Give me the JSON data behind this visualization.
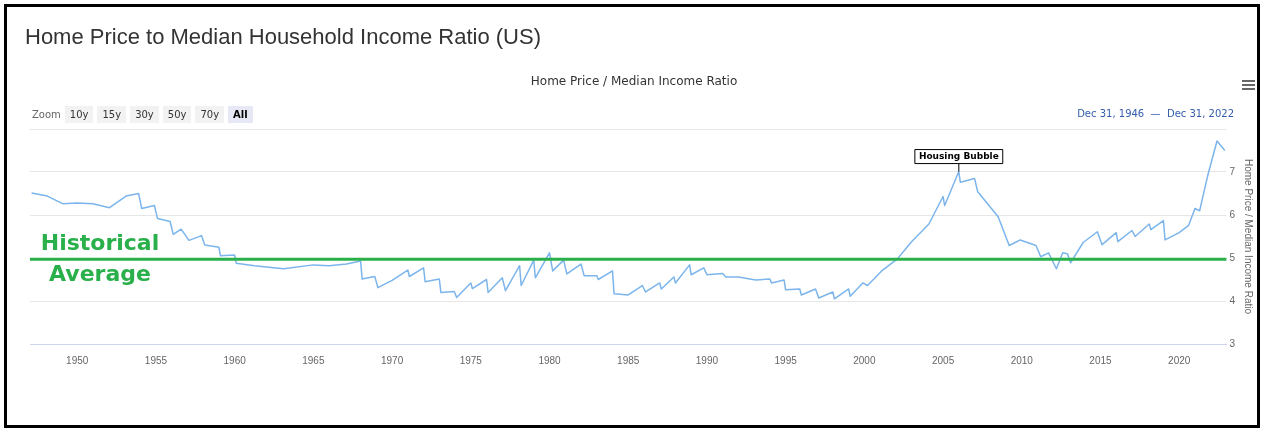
{
  "chart_data": {
    "type": "line",
    "title": "Home Price to Median Household Income Ratio (US)",
    "subtitle": "Home Price / Median Income Ratio",
    "ylabel": "Home Price / Median Income Ratio",
    "series": [
      {
        "color": "#7cb5ec",
        "x": [
          1947.1,
          1948.1,
          1949.1,
          1950,
          1951,
          1952.05,
          1953.1,
          1953.9,
          1954.1,
          1954.9,
          1955.1,
          1955.9,
          1956.1,
          1956.6,
          1957.1,
          1957.9,
          1958.1,
          1959,
          1959.1,
          1960,
          1960.1,
          1961.25,
          1963.1,
          1965,
          1966,
          1967.1,
          1968,
          1968.1,
          1968.9,
          1969.1,
          1970,
          1971,
          1971.1,
          1972,
          1972.1,
          1973,
          1973.1,
          1973.95,
          1974.1,
          1975,
          1975.1,
          1976,
          1976.1,
          1977,
          1977.2,
          1978.1,
          1978.2,
          1979,
          1979.1,
          1980,
          1980.2,
          1980.9,
          1981.1,
          1982,
          1982.2,
          1983,
          1983.1,
          1984,
          1984.1,
          1985,
          1985.9,
          1986.1,
          1987,
          1987.1,
          1987.9,
          1988,
          1988.9,
          1989,
          1989.8,
          1990,
          1991,
          1991.2,
          1992,
          1993.1,
          1994,
          1994.1,
          1994.9,
          1995,
          1995.9,
          1996,
          1996.9,
          1997.1,
          1998,
          1998.1,
          1999,
          1999.1,
          1999.9,
          2000.2,
          2001.1,
          2002.1,
          2003,
          2004.1,
          2005,
          2005.1,
          2006,
          2006.1,
          2007,
          2007.2,
          2008.5,
          2009.2,
          2009.9,
          2010.9,
          2011.2,
          2011.7,
          2012.2,
          2012.6,
          2012.9,
          2013.1,
          2013.9,
          2014.8,
          2015.1,
          2016,
          2016.1,
          2017,
          2017.2,
          2018.1,
          2018.2,
          2019,
          2019.1,
          2020,
          2020.6,
          2021,
          2021.3,
          2021.8,
          2022.4,
          2022.9
        ],
        "values": [
          6.51,
          6.44,
          6.26,
          6.28,
          6.26,
          6.17,
          6.44,
          6.5,
          6.15,
          6.22,
          5.92,
          5.85,
          5.55,
          5.67,
          5.41,
          5.52,
          5.3,
          5.25,
          5.05,
          5.07,
          4.88,
          4.82,
          4.75,
          4.84,
          4.82,
          4.86,
          4.93,
          4.51,
          4.57,
          4.31,
          4.48,
          4.72,
          4.57,
          4.77,
          4.45,
          4.51,
          4.2,
          4.22,
          4.08,
          4.42,
          4.29,
          4.5,
          4.2,
          4.54,
          4.24,
          4.82,
          4.36,
          4.95,
          4.54,
          5.12,
          4.7,
          4.95,
          4.63,
          4.86,
          4.59,
          4.59,
          4.5,
          4.7,
          4.17,
          4.14,
          4.36,
          4.21,
          4.42,
          4.28,
          4.56,
          4.42,
          4.84,
          4.61,
          4.77,
          4.61,
          4.64,
          4.56,
          4.56,
          4.49,
          4.51,
          4.42,
          4.49,
          4.26,
          4.28,
          4.14,
          4.28,
          4.07,
          4.21,
          4.05,
          4.28,
          4.11,
          4.42,
          4.36,
          4.7,
          4.98,
          5.38,
          5.79,
          6.43,
          6.22,
          7.01,
          6.76,
          6.85,
          6.54,
          5.96,
          5.29,
          5.42,
          5.29,
          5.03,
          5.12,
          4.75,
          5.12,
          5.1,
          4.89,
          5.36,
          5.61,
          5.31,
          5.59,
          5.38,
          5.64,
          5.5,
          5.79,
          5.66,
          5.87,
          5.42,
          5.59,
          5.76,
          6.15,
          6.1,
          6.9,
          7.72,
          7.5
        ]
      }
    ],
    "xlim": [
      1947,
      2023
    ],
    "xticks": [
      1950,
      1955,
      1960,
      1965,
      1970,
      1975,
      1980,
      1985,
      1990,
      1995,
      2000,
      2005,
      2010,
      2015,
      2020
    ],
    "ylim": [
      3,
      8
    ],
    "yticks": [
      3,
      4,
      5,
      6,
      7,
      {
        "value": 8,
        "label": null
      }
    ],
    "grid": "y",
    "legend": false,
    "marker": "none",
    "line_style": "solid",
    "ref_lines": [
      {
        "axis": "y",
        "value": 4.97,
        "label": "Historical Average",
        "color": "#2ab04a"
      }
    ],
    "annotations": [
      "Zoom",
      "10y",
      "15y",
      "30y",
      "50y",
      "70y",
      "All",
      "Dec 31, 1946  —  Dec 31, 2022",
      {
        "text": "Housing Bubble",
        "x": 2006,
        "y": 7.01
      }
    ]
  }
}
